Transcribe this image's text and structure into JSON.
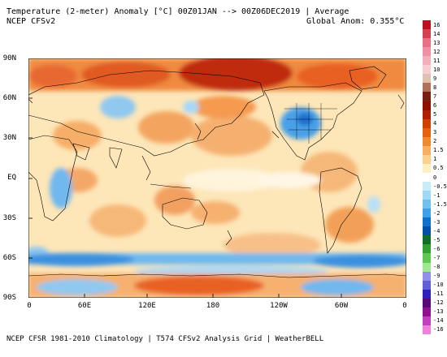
{
  "header": {
    "title": "Temperature (2-meter) Anomaly  [°C] 00Z01JAN --> 00Z06DEC2019 | Average",
    "subtitle": "NCEP CFSv2",
    "global_anom": "Global Anom: 0.355°C"
  },
  "footer": "NCEP CFSR 1981-2010 Climatology | T574 CFSv2 Analysis Grid | WeatherBELL",
  "map": {
    "lat_labels": [
      "90N",
      "60N",
      "30N",
      "EQ",
      "30S",
      "60S",
      "90S"
    ],
    "lon_labels": [
      "0",
      "60E",
      "120E",
      "180",
      "120W",
      "60W",
      "0"
    ]
  },
  "colorbar": {
    "labels": [
      "16",
      "14",
      "13",
      "12",
      "11",
      "10",
      "9",
      "8",
      "7",
      "6",
      "5",
      "4",
      "3",
      "2",
      "1.5",
      "1",
      "0.5",
      "0",
      "-0.5",
      "-1",
      "-1.5",
      "-2",
      "-3",
      "-4",
      "-5",
      "-6",
      "-7",
      "-8",
      "-9",
      "-10",
      "-11",
      "-12",
      "-13",
      "-14",
      "-16"
    ],
    "colors": [
      "#c01020",
      "#d84050",
      "#e87080",
      "#f090a0",
      "#f4b0b8",
      "#f8ccd0",
      "#e0c0b0",
      "#b0705a",
      "#7a2010",
      "#901000",
      "#b02000",
      "#d04000",
      "#e86010",
      "#f08830",
      "#f8b060",
      "#fdd090",
      "#fff0c0",
      "#ffffff",
      "#c8ecf8",
      "#a0d8f8",
      "#70c0f0",
      "#40a0e8",
      "#1070d0",
      "#0050a8",
      "#107020",
      "#30a030",
      "#60c850",
      "#a0e890",
      "#9090e8",
      "#6060d8",
      "#3020c0",
      "#5a0a78",
      "#901090",
      "#c040c0",
      "#f080e0"
    ]
  },
  "colors": {
    "warm_strong": "#e05018",
    "warm": "#f8b870",
    "warm_light": "#fde0a8",
    "cool_light": "#a8d8f8",
    "cool": "#4aa0e8",
    "land_border": "#000000"
  }
}
